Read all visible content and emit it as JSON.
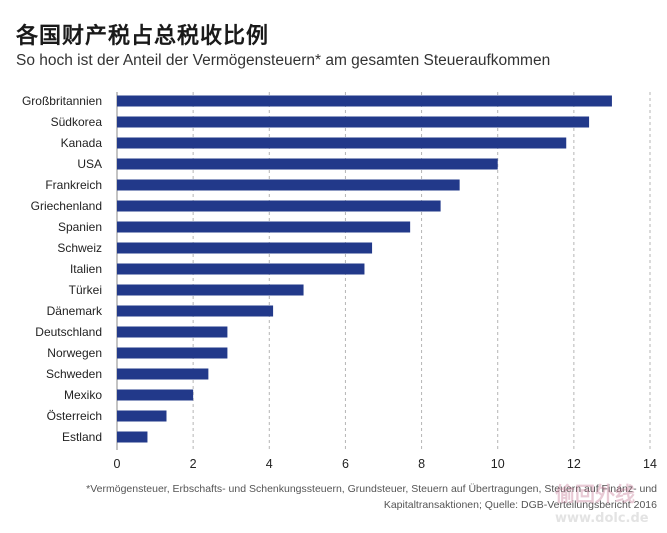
{
  "header": {
    "title": "各国财产税占总税收比例",
    "subtitle": "So hoch ist der Anteil der Vermögensteuern* am gesamten Steueraufkommen"
  },
  "footnote": {
    "line1": "*Vermögensteuer, Erbschafts- und Schenkungssteuern, Grundsteuer, Steuern auf Übertragungen, Steuern auf Finanz- und",
    "line2": "Kapitaltransaktionen; Quelle: DGB-Verteilungsbericht 2016"
  },
  "watermark": {
    "text": "偷回外线",
    "url": "www.dolc.de"
  },
  "colors": {
    "bar": "#22398a",
    "grid": "#b5b5b5",
    "text": "#222222"
  },
  "chart_data": {
    "type": "bar",
    "orientation": "horizontal",
    "categories": [
      "Großbritannien",
      "Südkorea",
      "Kanada",
      "USA",
      "Frankreich",
      "Griechenland",
      "Spanien",
      "Schweiz",
      "Italien",
      "Türkei",
      "Dänemark",
      "Deutschland",
      "Norwegen",
      "Schweden",
      "Mexiko",
      "Österreich",
      "Estland"
    ],
    "values": [
      13.0,
      12.4,
      11.8,
      10.0,
      9.0,
      8.5,
      7.7,
      6.7,
      6.5,
      4.9,
      4.1,
      2.9,
      2.9,
      2.4,
      2.0,
      1.3,
      0.8
    ],
    "xlim": [
      0,
      14
    ],
    "xticks": [
      0,
      2,
      4,
      6,
      8,
      10,
      12,
      14
    ],
    "tick_labels": [
      "0",
      "2",
      "4",
      "6",
      "8",
      "10",
      "12",
      "14"
    ],
    "grid": true,
    "legend": "none"
  }
}
